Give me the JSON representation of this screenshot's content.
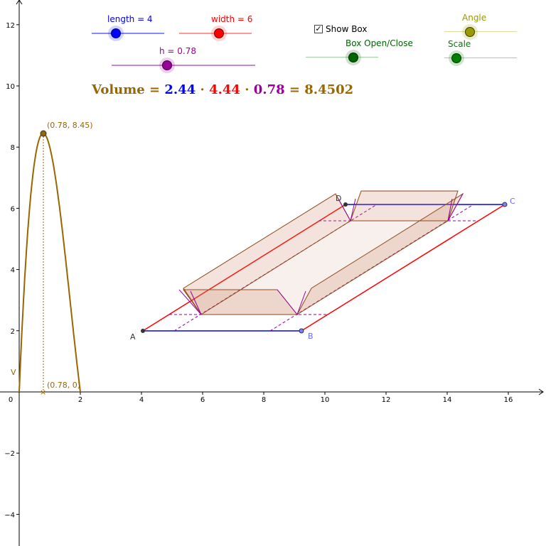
{
  "sliders": {
    "length": {
      "label": "length = 4",
      "value": 4,
      "color": "#0000ff"
    },
    "width": {
      "label": "width = 6",
      "value": 6,
      "color": "#ff0000"
    },
    "h": {
      "label": "h = 0.78",
      "value": 0.78,
      "color": "#990099"
    },
    "angle": {
      "label": "Angle",
      "color": "#999900"
    },
    "box_open_close": {
      "label": "Box Open/Close",
      "color": "#006400"
    },
    "scale": {
      "label": "Scale",
      "color": "#008000"
    }
  },
  "checkbox": {
    "label": "Show Box",
    "checked": true,
    "mark": "✓"
  },
  "volume": {
    "prefix": "Volume",
    "eq": "=",
    "length_term": "2.44",
    "dot": "·",
    "width_term": "4.44",
    "h_term": "0.78",
    "result": "8.4502",
    "colors": {
      "text": "#996600",
      "length": "#0000ff",
      "width": "#ff0000",
      "h": "#990099"
    }
  },
  "axes": {
    "x_ticks": [
      "0",
      "2",
      "4",
      "6",
      "8",
      "10",
      "12",
      "14",
      "16"
    ],
    "y_ticks": [
      "12",
      "10",
      "8",
      "6",
      "4",
      "2",
      "−2",
      "−4"
    ],
    "y_axis_label": "V"
  },
  "graph": {
    "peak_label": "(0.78, 8.45)",
    "foot_label": "(0.78, 0)",
    "points": {
      "A": "A",
      "B": "B",
      "C": "C",
      "D": "D"
    },
    "curve_color": "#996600"
  }
}
